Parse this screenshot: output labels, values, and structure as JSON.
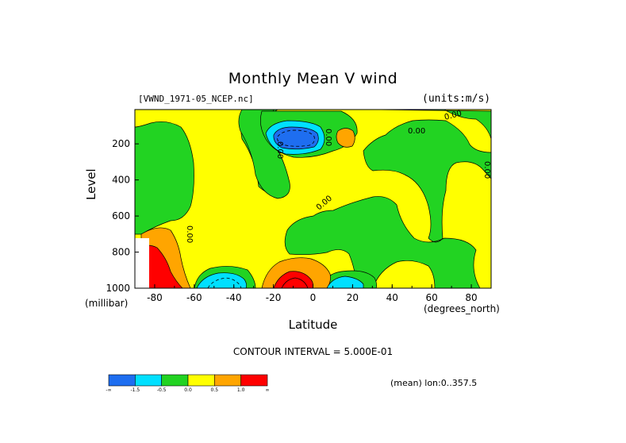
{
  "chart_data": {
    "type": "heatmap",
    "title": "Monthly Mean V wind",
    "source_label": "[VWND_1971-05_NCEP.nc]",
    "units_label": "(units:m/s)",
    "xlabel": "Latitude",
    "x_units": "(degrees_north)",
    "ylabel": "Level",
    "y_units": "(millibar)",
    "xlim": [
      -90,
      90
    ],
    "ylim": [
      1000,
      10
    ],
    "x_ticks": [
      -80,
      -60,
      -40,
      -20,
      0,
      20,
      40,
      60,
      80
    ],
    "y_ticks": [
      200,
      400,
      600,
      800,
      1000
    ],
    "contour_interval_text": "CONTOUR INTERVAL = 5.000E-01",
    "mean_text": "(mean) lon:0..357.5",
    "contour_labels": [
      "0.00",
      "0.00",
      "0.00",
      "0.00",
      "0.00",
      "0.00",
      "0.00"
    ],
    "colorbar": {
      "colors": [
        "#1e6ef0",
        "#00e0ff",
        "#22d322",
        "#ffff00",
        "#ffa500",
        "#ff0000"
      ],
      "labels": [
        "-∞",
        "-1.5",
        "-0.5",
        "0.0",
        "0.5",
        "1.0",
        "∞"
      ]
    },
    "regions": [
      {
        "name": "upper-tropical-negative",
        "level": -2.0,
        "lat_center": -10,
        "p_center": 170
      },
      {
        "name": "surface-antarctic-positive",
        "level": 1.5,
        "lat_center": -80,
        "p_center": 900
      },
      {
        "name": "surface-tropical-positive",
        "level": 1.5,
        "lat_center": -10,
        "p_center": 960
      },
      {
        "name": "surface-southern-negative",
        "level": -1.0,
        "lat_center": -45,
        "p_center": 970
      },
      {
        "name": "surface-northern-negative",
        "level": -1.0,
        "lat_center": 15,
        "p_center": 975
      }
    ]
  }
}
